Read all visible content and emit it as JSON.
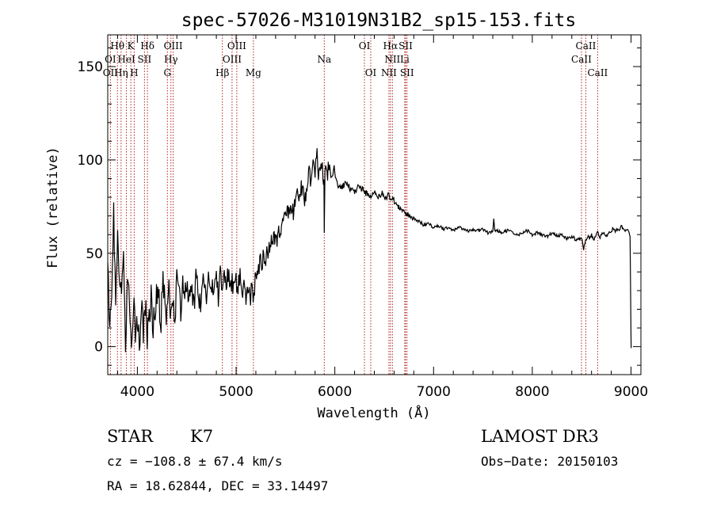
{
  "chart_data": {
    "type": "line",
    "title": "spec-57026-M31019N31B2_sp15-153.fits",
    "xlabel": "Wavelength (Å)",
    "ylabel": "Flux (relative)",
    "xlim": [
      3700,
      9100
    ],
    "ylim": [
      -15,
      167
    ],
    "x_ticks": [
      4000,
      5000,
      6000,
      7000,
      8000,
      9000
    ],
    "y_ticks": [
      0,
      50,
      100,
      150
    ],
    "x_tick_labels": [
      "4000",
      "5000",
      "6000",
      "7000",
      "8000",
      "9000"
    ],
    "y_tick_labels": [
      "0",
      "50",
      "100",
      "150"
    ],
    "series": [
      {
        "name": "flux",
        "x": [
          3700,
          3720,
          3740,
          3760,
          3780,
          3800,
          3820,
          3840,
          3860,
          3880,
          3900,
          3920,
          3940,
          3960,
          3980,
          4000,
          4020,
          4040,
          4060,
          4080,
          4100,
          4120,
          4140,
          4160,
          4180,
          4200,
          4220,
          4240,
          4260,
          4280,
          4300,
          4320,
          4340,
          4360,
          4380,
          4400,
          4420,
          4440,
          4460,
          4480,
          4500,
          4520,
          4540,
          4560,
          4580,
          4600,
          4620,
          4640,
          4660,
          4680,
          4700,
          4720,
          4740,
          4760,
          4780,
          4800,
          4820,
          4840,
          4860,
          4880,
          4900,
          4920,
          4940,
          4960,
          4980,
          5000,
          5020,
          5040,
          5060,
          5080,
          5100,
          5120,
          5140,
          5160,
          5180,
          5200,
          5220,
          5240,
          5260,
          5280,
          5300,
          5340,
          5380,
          5420,
          5460,
          5500,
          5540,
          5580,
          5620,
          5660,
          5700,
          5740,
          5760,
          5780,
          5800,
          5820,
          5840,
          5860,
          5880,
          5890,
          5893,
          5896,
          5900,
          5920,
          5940,
          5960,
          5980,
          6000,
          6040,
          6080,
          6120,
          6160,
          6200,
          6240,
          6280,
          6320,
          6360,
          6400,
          6440,
          6480,
          6520,
          6540,
          6560,
          6580,
          6620,
          6660,
          6700,
          6740,
          6780,
          6820,
          6860,
          6900,
          6950,
          7000,
          7050,
          7100,
          7150,
          7200,
          7250,
          7300,
          7350,
          7400,
          7450,
          7500,
          7550,
          7600,
          7610,
          7620,
          7650,
          7700,
          7750,
          7800,
          7850,
          7900,
          7950,
          8000,
          8050,
          8100,
          8150,
          8200,
          8250,
          8300,
          8350,
          8400,
          8450,
          8500,
          8520,
          8540,
          8560,
          8580,
          8600,
          8620,
          8640,
          8660,
          8680,
          8700,
          8720,
          8740,
          8760,
          8780,
          8800,
          8820,
          8840,
          8860,
          8880,
          8900,
          8920,
          8940,
          8960,
          8980,
          8990,
          9000,
          9001
        ],
        "y": [
          45,
          12,
          30,
          70,
          20,
          55,
          30,
          35,
          45,
          5,
          40,
          18,
          -3,
          25,
          10,
          15,
          -2,
          20,
          8,
          25,
          5,
          18,
          28,
          10,
          20,
          30,
          22,
          15,
          35,
          25,
          18,
          30,
          20,
          28,
          15,
          38,
          25,
          20,
          35,
          28,
          32,
          22,
          40,
          30,
          25,
          38,
          28,
          20,
          35,
          30,
          25,
          40,
          30,
          35,
          28,
          38,
          26,
          42,
          30,
          35,
          32,
          40,
          28,
          34,
          30,
          36,
          30,
          38,
          25,
          32,
          28,
          31,
          27,
          30,
          24,
          40,
          38,
          45,
          42,
          50,
          48,
          55,
          60,
          58,
          65,
          68,
          75,
          72,
          80,
          85,
          78,
          92,
          88,
          98,
          95,
          102,
          90,
          97,
          93,
          85,
          60,
          80,
          95,
          90,
          96,
          88,
          92,
          93,
          85,
          86,
          88,
          84,
          83,
          86,
          84,
          82,
          81,
          83,
          80,
          82,
          79,
          82,
          78,
          80,
          76,
          74,
          72,
          71,
          69,
          68,
          67,
          65,
          66,
          64,
          65,
          63,
          64,
          62,
          64,
          63,
          62,
          63,
          62,
          63,
          61,
          62,
          69,
          62,
          62,
          61,
          62,
          61,
          60,
          61,
          62,
          60,
          61,
          60,
          59,
          61,
          59,
          60,
          58,
          59,
          57,
          58,
          52,
          57,
          59,
          58,
          60,
          57,
          59,
          62,
          58,
          60,
          61,
          59,
          60,
          62,
          61,
          64,
          61,
          63,
          62,
          65,
          63,
          62,
          63,
          61,
          60,
          5,
          -1
        ]
      }
    ],
    "line_labels": [
      {
        "text": "Hθ",
        "wave": 3798,
        "row": 1
      },
      {
        "text": "K",
        "wave": 3934,
        "row": 1
      },
      {
        "text": "Hδ",
        "wave": 4102,
        "row": 1
      },
      {
        "text": "OIII",
        "wave": 4363,
        "row": 1
      },
      {
        "text": "OIII",
        "wave": 5007,
        "row": 1
      },
      {
        "text": "OI",
        "wave": 6300,
        "row": 1
      },
      {
        "text": "Hα",
        "wave": 6563,
        "row": 1
      },
      {
        "text": "SII",
        "wave": 6717,
        "row": 1
      },
      {
        "text": "CaII",
        "wave": 8542,
        "row": 1
      },
      {
        "text": "OI",
        "wave": 3727,
        "row": 2
      },
      {
        "text": "HeI",
        "wave": 3889,
        "row": 2
      },
      {
        "text": "SII",
        "wave": 4072,
        "row": 2
      },
      {
        "text": "Hγ",
        "wave": 4340,
        "row": 2
      },
      {
        "text": "OIII",
        "wave": 4959,
        "row": 2
      },
      {
        "text": "Na",
        "wave": 5893,
        "row": 2
      },
      {
        "text": "NII",
        "wave": 6583,
        "row": 2
      },
      {
        "text": "Li",
        "wave": 6708,
        "row": 2
      },
      {
        "text": "CaII",
        "wave": 8498,
        "row": 2
      },
      {
        "text": "OII",
        "wave": 3727,
        "row": 3
      },
      {
        "text": "Hη",
        "wave": 3835,
        "row": 3
      },
      {
        "text": "H",
        "wave": 3968,
        "row": 3
      },
      {
        "text": "G",
        "wave": 4304,
        "row": 3
      },
      {
        "text": "Hβ",
        "wave": 4861,
        "row": 3
      },
      {
        "text": "Mg",
        "wave": 5175,
        "row": 3
      },
      {
        "text": "OI",
        "wave": 6364,
        "row": 3
      },
      {
        "text": "NII",
        "wave": 6548,
        "row": 3
      },
      {
        "text": "SII",
        "wave": 6731,
        "row": 3
      },
      {
        "text": "CaII",
        "wave": 8662,
        "row": 3
      }
    ],
    "line_positions": [
      3727,
      3798,
      3835,
      3889,
      3934,
      3968,
      4072,
      4102,
      4304,
      4340,
      4363,
      4861,
      4959,
      5007,
      5175,
      5893,
      6300,
      6364,
      6548,
      6563,
      6583,
      6708,
      6717,
      6731,
      8498,
      8542,
      8662
    ],
    "line_color": "#b22222",
    "curve_color": "#000000"
  },
  "info": {
    "class": "STAR",
    "subclass": "K7",
    "survey": "LAMOST DR3",
    "cz": "cz = −108.8 ± 67.4 km/s",
    "obs_date": "Obs−Date: 20150103",
    "radec": "RA =  18.62844, DEC =  33.14497"
  }
}
